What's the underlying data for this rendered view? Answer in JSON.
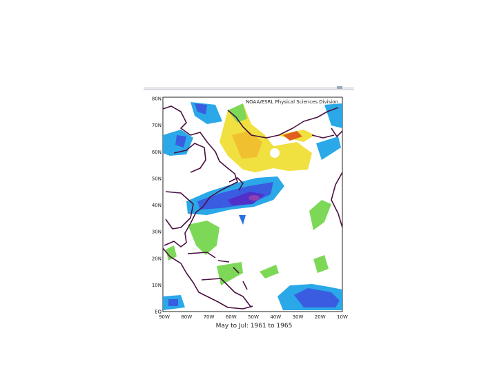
{
  "map": {
    "credit": "NOAA/ESRL Physical Sciences Division",
    "lat_labels": [
      "80N",
      "70N",
      "60N",
      "50N",
      "40N",
      "30N",
      "20N",
      "10N",
      "EQ"
    ],
    "lon_labels": [
      "90W",
      "80W",
      "70W",
      "60W",
      "50W",
      "40W",
      "30W",
      "20W",
      "10W"
    ],
    "caption": "May to Jul: 1961 to 1965"
  }
}
